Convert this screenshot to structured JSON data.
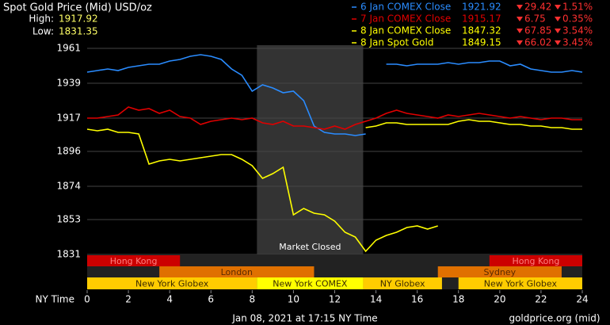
{
  "chart_data": {
    "type": "line",
    "title": "Spot Gold Price (Mid) USD/oz",
    "high_label": "High:",
    "high": 1917.92,
    "low_label": "Low:",
    "low": 1831.35,
    "x_label": "NY Time",
    "footer": "Jan 08, 2021 at 17:15 NY Time",
    "source": "goldprice.org (mid)",
    "annotation": "Market Closed",
    "closed": [
      8.23,
      13.38
    ],
    "x": [
      0,
      0.5,
      1,
      1.5,
      2,
      2.5,
      3,
      3.5,
      4,
      4.5,
      5,
      5.5,
      6,
      6.5,
      7,
      7.5,
      8,
      8.5,
      9,
      9.5,
      10,
      10.5,
      11,
      11.5,
      12,
      12.5,
      13,
      13.5,
      14,
      14.5,
      15,
      15.5,
      16,
      16.5,
      17,
      17.5,
      18,
      18.5,
      19,
      19.5,
      20,
      20.5,
      21,
      21.5,
      22,
      22.5,
      23,
      23.5,
      24
    ],
    "xlim": [
      0,
      24
    ],
    "xticks": [
      0,
      2,
      4,
      6,
      8,
      10,
      12,
      14,
      16,
      18,
      20,
      22,
      24
    ],
    "ylim": [
      1831,
      1961
    ],
    "yticks": [
      1961,
      1939,
      1917,
      1896,
      1874,
      1853,
      1831
    ],
    "grid": true,
    "series": [
      {
        "name": "6 Jan COMEX Close",
        "color": "#2a8cff",
        "close": 1921.92,
        "change": 29.42,
        "change_pct": "1.51%",
        "values": [
          1946,
          1947,
          1948,
          1947,
          1949,
          1950,
          1951,
          1951,
          1953,
          1954,
          1956,
          1957,
          1956,
          1954,
          1948,
          1944,
          1934,
          1938,
          1936,
          1933,
          1934,
          1928,
          1912,
          1908,
          1907,
          1907,
          1906,
          1907,
          null,
          1951,
          1951,
          1950,
          1951,
          1951,
          1951,
          1952,
          1951,
          1952,
          1952,
          1953,
          1953,
          1950,
          1951,
          1948,
          1947,
          1946,
          1946,
          1947,
          1946
        ]
      },
      {
        "name": "7 Jan COMEX Close",
        "color": "#e00000",
        "close": 1915.17,
        "change": 6.75,
        "change_pct": "0.35%",
        "values": [
          1917,
          1917,
          1918,
          1919,
          1924,
          1922,
          1923,
          1920,
          1922,
          1918,
          1917,
          1913,
          1915,
          1916,
          1917,
          1916,
          1917,
          1914,
          1913,
          1915,
          1912,
          1912,
          1911,
          1910,
          1912,
          1910,
          1913,
          1915,
          1917,
          1920,
          1922,
          1920,
          1919,
          1918,
          1917,
          1919,
          1918,
          1919,
          1920,
          1919,
          1918,
          1917,
          1918,
          1917,
          1916,
          1917,
          1917,
          1916,
          1916
        ]
      },
      {
        "name": "8 Jan COMEX Close",
        "color": "#ffff00",
        "close": 1847.32,
        "change": 67.85,
        "change_pct": "3.54%",
        "values": [
          null,
          null,
          null,
          null,
          null,
          null,
          null,
          null,
          null,
          null,
          null,
          null,
          null,
          null,
          null,
          null,
          null,
          null,
          null,
          null,
          null,
          null,
          null,
          null,
          null,
          null,
          null,
          1911,
          1912,
          1914,
          1914,
          1913,
          1913,
          1913,
          1913,
          1913,
          1915,
          1916,
          1915,
          1915,
          1914,
          1913,
          1913,
          1912,
          1912,
          1911,
          1911,
          1910,
          1910
        ]
      },
      {
        "name": "8 Jan Spot Gold",
        "color": "#ffff00",
        "close": 1849.15,
        "change": 66.02,
        "change_pct": "3.45%",
        "values": [
          1910,
          1909,
          1910,
          1908,
          1908,
          1907,
          1888,
          1890,
          1891,
          1890,
          1891,
          1892,
          1893,
          1894,
          1894,
          1891,
          1887,
          1879,
          1882,
          1886,
          1856,
          1860,
          1857,
          1856,
          1852,
          1845,
          1842,
          1833,
          1840,
          1843,
          1845,
          1848,
          1849,
          1847,
          1849,
          null,
          null,
          null,
          null,
          null,
          null,
          null,
          null,
          null,
          null,
          null,
          null,
          null,
          null
        ]
      }
    ],
    "sessions": [
      [
        {
          "name": "Hong Kong",
          "start": 0,
          "end": 4.5,
          "color": "#cc0000"
        },
        {
          "name": "Hong Kong",
          "start": 19.5,
          "end": 24,
          "color": "#cc0000"
        }
      ],
      [
        {
          "name": "London",
          "start": 3.5,
          "end": 11,
          "color": "#e07000"
        },
        {
          "name": "Sydney",
          "start": 17,
          "end": 23,
          "color": "#e07000"
        }
      ],
      [
        {
          "name": "New York Globex",
          "start": 0,
          "end": 8.23,
          "color": "#ffcc00"
        },
        {
          "name": "New York COMEX",
          "start": 8.23,
          "end": 13.38,
          "color": "#ffff00"
        },
        {
          "name": "NY Globex",
          "start": 13.38,
          "end": 17.2,
          "color": "#ffcc00"
        },
        {
          "name": "New York Globex",
          "start": 18,
          "end": 24,
          "color": "#ffcc00"
        }
      ]
    ]
  }
}
